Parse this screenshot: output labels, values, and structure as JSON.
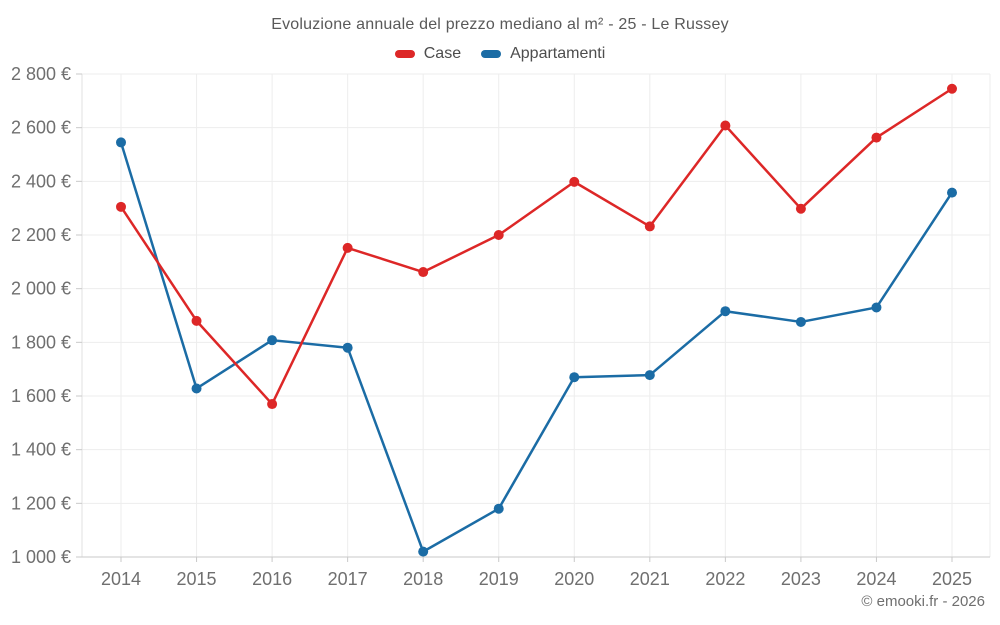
{
  "chart": {
    "title": "Evoluzione annuale del prezzo mediano al m² - 25 - Le Russey",
    "footer": "© emooki.fr - 2026"
  },
  "chart_data": {
    "type": "line",
    "title": "Evoluzione annuale del prezzo mediano al m² - 25 - Le Russey",
    "categories": [
      "2014",
      "2015",
      "2016",
      "2017",
      "2018",
      "2019",
      "2020",
      "2021",
      "2022",
      "2023",
      "2024",
      "2025"
    ],
    "series": [
      {
        "name": "Case",
        "color": "#dd2727",
        "values": [
          2305,
          1880,
          1570,
          2152,
          2062,
          2200,
          2398,
          2232,
          2608,
          2298,
          2563,
          2745
        ]
      },
      {
        "name": "Appartamenti",
        "color": "#1b6ca5",
        "values": [
          2545,
          1628,
          1808,
          1780,
          1020,
          1180,
          1670,
          1678,
          1916,
          1876,
          1930,
          2358
        ]
      }
    ],
    "xlabel": "",
    "ylabel": "",
    "ylim": [
      1000,
      2800
    ],
    "y_ticks": [
      2800,
      2600,
      2400,
      2200,
      2000,
      1800,
      1600,
      1400,
      1200,
      1000
    ],
    "y_tick_labels": [
      "2 800 €",
      "2 600 €",
      "2 400 €",
      "2 200 €",
      "2 000 €",
      "1 800 €",
      "1 600 €",
      "1 400 €",
      "1 200 €",
      "1 000 €"
    ],
    "grid": true,
    "legend_position": "top",
    "marker": "circle",
    "colors": {
      "grid": "#ededed",
      "axis": "#c9c9c9",
      "y_axis_line": "#e2e2e2",
      "axis_labels": "#6f6f6f",
      "title_text": "#595959",
      "background": "#ffffff"
    }
  }
}
